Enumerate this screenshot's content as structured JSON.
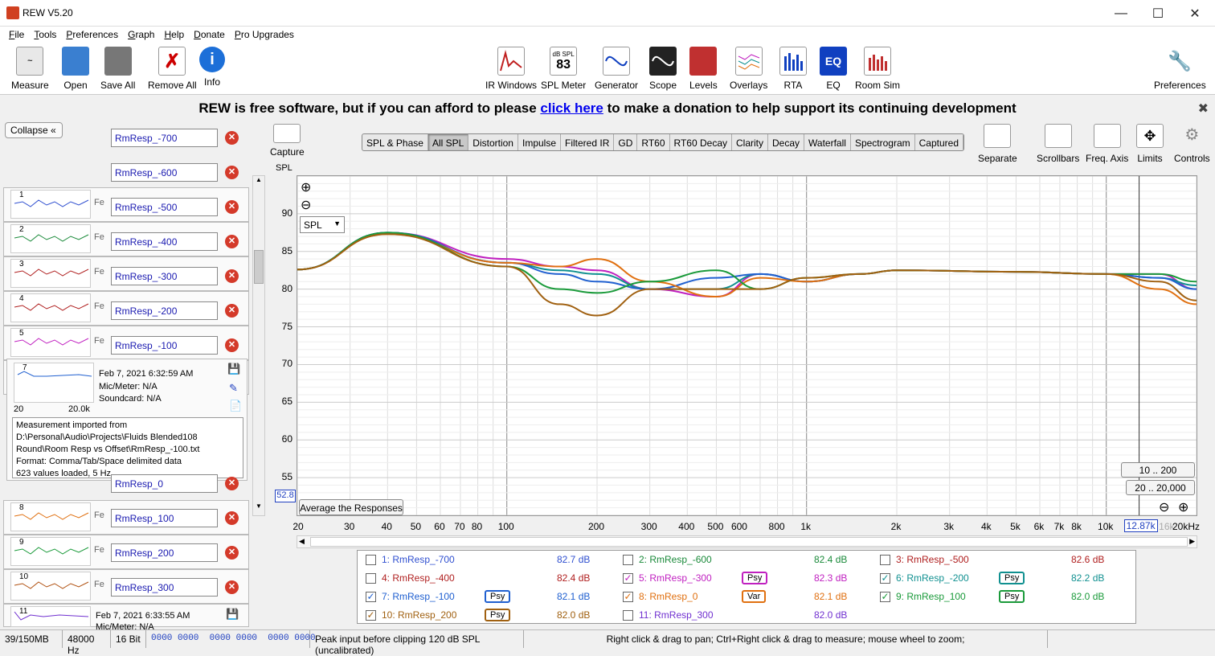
{
  "window": {
    "title": "REW V5.20"
  },
  "menu": [
    "File",
    "Tools",
    "Preferences",
    "Graph",
    "Help",
    "Donate",
    "Pro Upgrades"
  ],
  "toolbar": {
    "left": [
      "Measure",
      "Open",
      "Save All",
      "Remove All",
      "Info"
    ],
    "center": [
      "IR Windows",
      "SPL Meter",
      "Generator",
      "Scope",
      "Levels",
      "Overlays",
      "RTA",
      "EQ",
      "Room Sim"
    ],
    "right": "Preferences",
    "spl_meter_top": "dB SPL",
    "spl_meter_value": "83"
  },
  "banner": {
    "pre": "REW is free software, but if you can afford to please ",
    "link": "click here",
    "post": " to make a donation to help support its continuing development"
  },
  "panel": {
    "collapse": "Collapse",
    "measurements": [
      {
        "num": "",
        "name": "RmResp_-700",
        "color": "#3050d0"
      },
      {
        "num": "1",
        "name": "RmResp_-600",
        "color": "#3050d0"
      },
      {
        "num": "2",
        "name": "RmResp_-500",
        "color": "#1a8a3a"
      },
      {
        "num": "3",
        "name": "RmResp_-400",
        "color": "#b02020"
      },
      {
        "num": "4",
        "name": "RmResp_-300",
        "color": "#b02020"
      },
      {
        "num": "5",
        "name": "RmResp_-200",
        "color": "#c020c0"
      },
      {
        "num": "6",
        "name": "RmResp_-100",
        "color": "#109090"
      }
    ],
    "expanded": {
      "num": "7",
      "date": "Feb 7, 2021 6:32:59 AM",
      "mic": "Mic/Meter: N/A",
      "soundcard": "Soundcard: N/A",
      "x_min": "20",
      "x_max": "20.0k",
      "fe": "Fe",
      "notes": [
        "Measurement imported from",
        "D:\\Personal\\Audio\\Projects\\Fluids Blended108",
        "Round\\Room Resp vs Offset\\RmResp_-100.txt",
        "Format: Comma/Tab/Space delimited data",
        "623 values loaded, 5 Hz"
      ]
    },
    "lower": [
      {
        "num": "",
        "name": "RmResp_0",
        "color": "#2060d0"
      },
      {
        "num": "8",
        "name": "RmResp_100",
        "color": "#e07010"
      },
      {
        "num": "9",
        "name": "RmResp_200",
        "color": "#1a9a3a"
      },
      {
        "num": "10",
        "name": "RmResp_300",
        "color": "#b05010"
      }
    ],
    "last": {
      "num": "11",
      "date": "Feb 7, 2021 6:33:55 AM",
      "mic": "Mic/Meter: N/A"
    }
  },
  "graph": {
    "capture": "Capture",
    "tabs": [
      "SPL & Phase",
      "All SPL",
      "Distortion",
      "Impulse",
      "Filtered IR",
      "GD",
      "RT60",
      "RT60 Decay",
      "Clarity",
      "Decay",
      "Waterfall",
      "Spectrogram",
      "Captured"
    ],
    "selected_tab": "All SPL",
    "right_controls": [
      "Separate",
      "Scrollbars",
      "Freq. Axis",
      "Limits",
      "Controls"
    ],
    "y_axis_title": "SPL",
    "spl_select": "SPL",
    "avg_button": "Average the Responses",
    "range1": "10 .. 200",
    "range2": "20 .. 20,000",
    "cursor_y": "52.8",
    "cursor_x": "12.87k"
  },
  "chart_data": {
    "type": "line",
    "xscale": "log",
    "xlim": [
      20,
      20000
    ],
    "ylim": [
      50,
      95
    ],
    "yticks": [
      "90",
      "85",
      "80",
      "75",
      "70",
      "65",
      "60",
      "55"
    ],
    "xticks": [
      "20",
      "30",
      "40",
      "50",
      "60",
      "70",
      "80",
      "100",
      "200",
      "300",
      "400",
      "500",
      "600",
      "800",
      "1k",
      "2k",
      "3k",
      "4k",
      "5k",
      "6k",
      "7k",
      "8k",
      "10k",
      "16k",
      "20kHz"
    ],
    "series": [
      {
        "name": "5: RmResp_-300",
        "color": "#c020c0",
        "x": [
          20,
          40,
          100,
          150,
          200,
          300,
          500,
          700,
          1000,
          1500,
          2000,
          5000,
          10000,
          15000,
          20000
        ],
        "y": [
          82.6,
          87.5,
          84,
          83,
          82.5,
          80,
          79,
          82,
          81,
          82,
          82.5,
          82.3,
          82,
          82,
          80
        ]
      },
      {
        "name": "6: RmResp_-200",
        "color": "#109090",
        "x": [
          20,
          40,
          100,
          150,
          200,
          300,
          500,
          700,
          1000,
          1500,
          2000,
          5000,
          10000,
          15000,
          20000
        ],
        "y": [
          82.6,
          87.5,
          83.5,
          82.5,
          82,
          80,
          80,
          82,
          81,
          82,
          82.5,
          82.3,
          82,
          81.5,
          80.5
        ]
      },
      {
        "name": "7: RmResp_-100",
        "color": "#2060d0",
        "x": [
          20,
          40,
          100,
          150,
          200,
          300,
          500,
          700,
          1000,
          1500,
          2000,
          5000,
          10000,
          15000,
          20000
        ],
        "y": [
          82.6,
          87.5,
          83.5,
          82,
          81,
          80,
          81.5,
          82,
          81,
          82,
          82.5,
          82.3,
          82,
          81.5,
          80
        ]
      },
      {
        "name": "8: RmResp_0",
        "color": "#e07010",
        "x": [
          20,
          40,
          100,
          150,
          200,
          300,
          500,
          700,
          1000,
          1500,
          2000,
          5000,
          10000,
          15000,
          20000
        ],
        "y": [
          82.6,
          87.3,
          83.5,
          83,
          84,
          81,
          79,
          81.5,
          81,
          82,
          82.5,
          82.3,
          82,
          80,
          78
        ]
      },
      {
        "name": "9: RmResp_100",
        "color": "#1a9a3a",
        "x": [
          20,
          40,
          100,
          150,
          200,
          300,
          500,
          700,
          1000,
          1500,
          2000,
          5000,
          10000,
          15000,
          20000
        ],
        "y": [
          82.6,
          87.5,
          83,
          80,
          79.5,
          81,
          82.5,
          80,
          81.5,
          82,
          82.5,
          82.3,
          82,
          82,
          81
        ]
      },
      {
        "name": "10: RmResp_200",
        "color": "#a06010",
        "x": [
          20,
          40,
          100,
          150,
          200,
          300,
          500,
          700,
          1000,
          1500,
          2000,
          5000,
          10000,
          15000,
          20000
        ],
        "y": [
          82.6,
          87.3,
          83,
          78,
          76.5,
          80,
          80,
          80,
          81.5,
          82,
          82.5,
          82.3,
          82,
          81,
          78.5
        ]
      }
    ]
  },
  "legend": [
    {
      "label": "1: RmResp_-700",
      "db": "82.7 dB",
      "color": "#3050d0",
      "checked": false,
      "tag": ""
    },
    {
      "label": "2: RmResp_-600",
      "db": "82.4 dB",
      "color": "#1a8a3a",
      "checked": false,
      "tag": ""
    },
    {
      "label": "3: RmResp_-500",
      "db": "82.6 dB",
      "color": "#b02020",
      "checked": false,
      "tag": ""
    },
    {
      "label": "4: RmResp_-400",
      "db": "82.4 dB",
      "color": "#b02020",
      "checked": false,
      "tag": ""
    },
    {
      "label": "5: RmResp_-300",
      "db": "82.3 dB",
      "color": "#c020c0",
      "checked": true,
      "tag": "Psy"
    },
    {
      "label": "6: RmResp_-200",
      "db": "82.2 dB",
      "color": "#109090",
      "checked": true,
      "tag": "Psy"
    },
    {
      "label": "7: RmResp_-100",
      "db": "82.1 dB",
      "color": "#2060d0",
      "checked": true,
      "tag": "Psy"
    },
    {
      "label": "8: RmResp_0",
      "db": "82.1 dB",
      "color": "#e07010",
      "checked": true,
      "tag": "Var"
    },
    {
      "label": "9: RmResp_100",
      "db": "82.0 dB",
      "color": "#1a9a3a",
      "checked": true,
      "tag": "Psy"
    },
    {
      "label": "10: RmResp_200",
      "db": "82.0 dB",
      "color": "#a06010",
      "checked": true,
      "tag": "Psy"
    },
    {
      "label": "11: RmResp_300",
      "db": "82.0 dB",
      "color": "#7030d0",
      "checked": false,
      "tag": ""
    }
  ],
  "status": {
    "memory": "39/150MB",
    "rate": "48000 Hz",
    "bits": "16 Bit",
    "bits_display": "0000 0000  0000 0000  0000 0000",
    "peak": "Peak input before clipping 120 dB SPL (uncalibrated)",
    "hint": "Right click & drag to pan; Ctrl+Right click & drag to measure; mouse wheel to zoom;"
  }
}
